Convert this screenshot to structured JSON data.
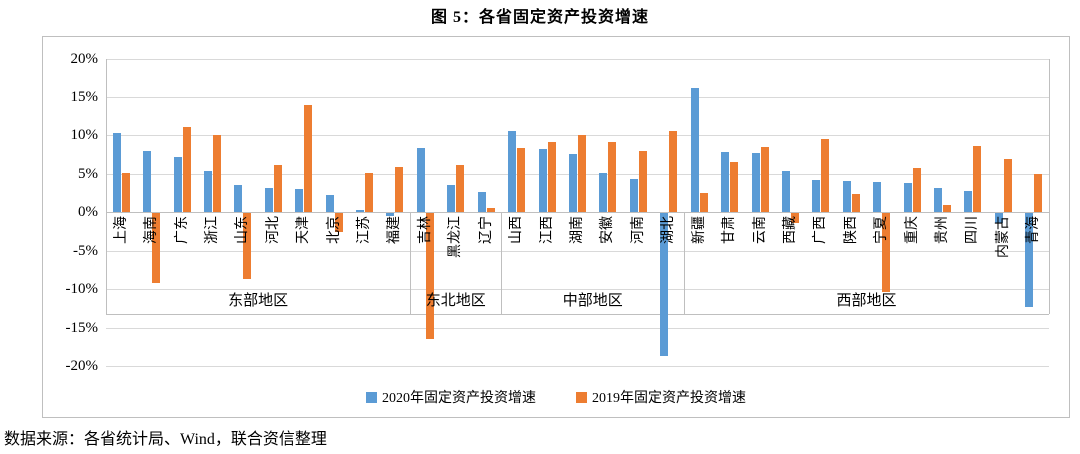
{
  "page": {
    "title": "图 5：各省固定资产投资增速",
    "source": "数据来源：各省统计局、Wind，联合资信整理"
  },
  "chart_data": {
    "type": "bar",
    "title": "图 5：各省固定资产投资增速",
    "xlabel": "",
    "ylabel": "",
    "ylim": [
      -20,
      20
    ],
    "y_ticks": [
      "20%",
      "15%",
      "10%",
      "5%",
      "0%",
      "-5%",
      "-10%",
      "-15%",
      "-20%"
    ],
    "grid": true,
    "legend_position": "bottom",
    "categories": [
      "上海",
      "海南",
      "广东",
      "浙江",
      "山东",
      "河北",
      "天津",
      "北京",
      "江苏",
      "福建",
      "吉林",
      "黑龙江",
      "辽宁",
      "山西",
      "江西",
      "湖南",
      "安徽",
      "河南",
      "湖北",
      "新疆",
      "甘肃",
      "云南",
      "西藏",
      "广西",
      "陕西",
      "宁夏",
      "重庆",
      "贵州",
      "四川",
      "内蒙古",
      "青海"
    ],
    "groups": [
      {
        "label": "东部地区",
        "count": 10
      },
      {
        "label": "东北地区",
        "count": 3
      },
      {
        "label": "中部地区",
        "count": 6
      },
      {
        "label": "西部地区",
        "count": 12
      }
    ],
    "series": [
      {
        "name": "2020年固定资产投资增速",
        "color": "#5B9BD5",
        "values": [
          10.3,
          8.0,
          7.2,
          5.4,
          3.6,
          3.2,
          3.0,
          2.2,
          0.3,
          -0.3,
          8.3,
          3.5,
          2.6,
          10.6,
          8.2,
          7.6,
          5.1,
          4.3,
          -18.6,
          16.2,
          7.8,
          7.7,
          5.4,
          4.2,
          4.1,
          3.9,
          3.8,
          3.1,
          2.7,
          -1.3,
          -12.2
        ]
      },
      {
        "name": "2019年固定资产投资增速",
        "color": "#ED7D31",
        "values": [
          5.1,
          -9.1,
          11.1,
          10.1,
          -8.5,
          6.2,
          13.9,
          -2.5,
          5.1,
          5.9,
          -16.3,
          6.2,
          0.5,
          8.3,
          9.2,
          10.1,
          9.2,
          8.0,
          10.6,
          2.5,
          6.5,
          8.5,
          -1.3,
          9.5,
          2.4,
          -10.3,
          5.7,
          1.0,
          8.6,
          6.9,
          5.0
        ]
      }
    ],
    "colors": {
      "grid": "#d9d9d9",
      "axis": "#bfbfbf",
      "text": "#000000"
    }
  }
}
